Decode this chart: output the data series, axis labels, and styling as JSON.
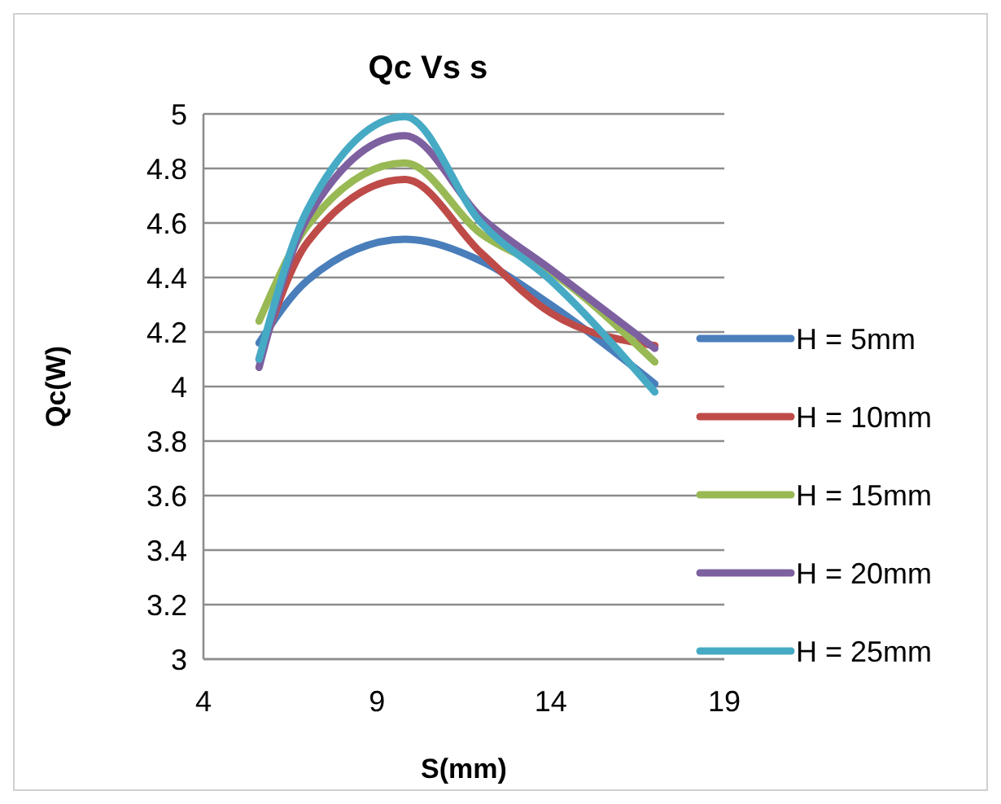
{
  "chart_data": {
    "type": "line",
    "title": "Qc Vs s",
    "xlabel": "S(mm)",
    "ylabel": "Qc(W)",
    "xlim": [
      4,
      19
    ],
    "xticks": [
      4,
      9,
      14,
      19
    ],
    "ylim": [
      3,
      5
    ],
    "yticks": [
      3,
      {
        "value": 3.2,
        "label": "3.2"
      },
      {
        "value": 3.4,
        "label": "3.4"
      },
      {
        "value": 3.6,
        "label": "3.6"
      },
      {
        "value": 3.8,
        "label": "3.8"
      },
      4,
      {
        "value": 4.2,
        "label": "4.2"
      },
      {
        "value": 4.4,
        "label": "4.4"
      },
      {
        "value": 4.6,
        "label": "4.6"
      },
      {
        "value": 4.8,
        "label": "4.8"
      },
      5
    ],
    "grid": "y",
    "legend": "right",
    "marker": "none",
    "line_style": "solid",
    "x": [
      5.6,
      7,
      9.8,
      12,
      14,
      17
    ],
    "series": [
      {
        "name": "H = 5mm",
        "color": "#4a7ebb",
        "values": [
          4.16,
          4.39,
          4.54,
          4.46,
          4.3,
          4.01
        ]
      },
      {
        "name": "H = 10mm",
        "color": "#be4b48",
        "values": [
          4.1,
          4.53,
          4.76,
          4.49,
          4.27,
          4.15
        ]
      },
      {
        "name": "H = 15mm",
        "color": "#98b954",
        "values": [
          4.24,
          4.59,
          4.82,
          4.56,
          4.42,
          4.09
        ]
      },
      {
        "name": "H = 20mm",
        "color": "#7d60a0",
        "values": [
          4.07,
          4.62,
          4.92,
          4.62,
          4.43,
          4.14
        ]
      },
      {
        "name": "H = 25mm",
        "color": "#46aac5",
        "values": [
          4.1,
          4.65,
          4.99,
          4.6,
          4.39,
          3.98
        ]
      }
    ]
  }
}
